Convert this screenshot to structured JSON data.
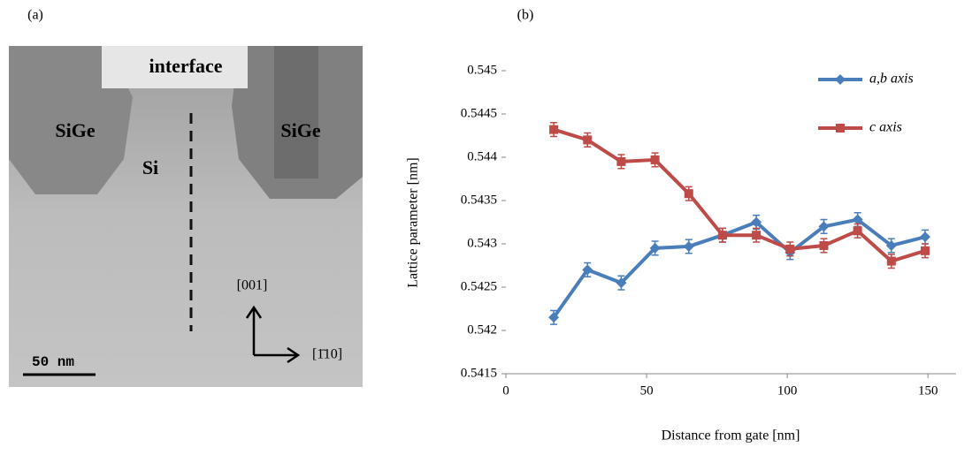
{
  "panel_labels": [
    "(a)",
    "(b)"
  ],
  "image": {
    "labels": [
      "interface",
      "SiGe",
      "Si",
      "SiGe",
      "[001]",
      "[1̄10]"
    ],
    "scale_bar": "50 nm"
  },
  "chart_data": {
    "type": "line",
    "x_label": "Distance from gate [nm]",
    "y_label": "Lattice parameter   [nm]",
    "x": [
      17,
      29,
      41,
      53,
      65,
      77,
      89,
      101,
      113,
      125,
      137,
      149
    ],
    "series": [
      {
        "name": "a,b axis",
        "color": "#4a7ebb",
        "marker": "diamond",
        "values": [
          0.54215,
          0.5427,
          0.54255,
          0.54295,
          0.54297,
          0.5431,
          0.54325,
          0.5429,
          0.5432,
          0.54328,
          0.54298,
          0.54308
        ],
        "errors": [
          8e-05,
          8e-05,
          8e-05,
          8e-05,
          8e-05,
          8e-05,
          8e-05,
          8e-05,
          8e-05,
          8e-05,
          8e-05,
          8e-05
        ]
      },
      {
        "name": "c  axis",
        "color": "#be4b48",
        "marker": "square",
        "values": [
          0.54432,
          0.5442,
          0.54395,
          0.54397,
          0.54358,
          0.5431,
          0.5431,
          0.54294,
          0.54298,
          0.54315,
          0.5428,
          0.54292
        ],
        "errors": [
          8e-05,
          8e-05,
          8e-05,
          8e-05,
          8e-05,
          8e-05,
          8e-05,
          8e-05,
          8e-05,
          8e-05,
          8e-05,
          8e-05
        ]
      }
    ],
    "xlim": [
      0,
      160
    ],
    "xticks": [
      0,
      50,
      100,
      150
    ],
    "ylim": [
      0.5415,
      0.545
    ],
    "yticks": [
      0.5415,
      0.542,
      0.5425,
      0.543,
      0.5435,
      0.544,
      0.5445,
      0.545
    ],
    "legend": "top-right"
  }
}
